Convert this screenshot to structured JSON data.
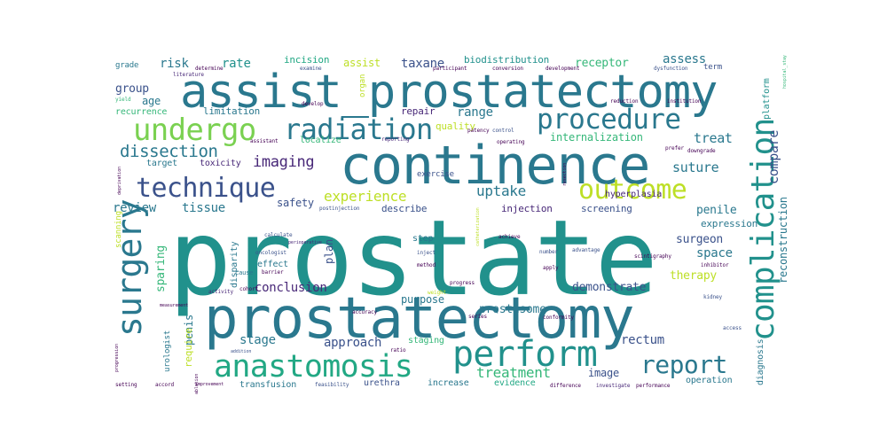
{
  "palette": {
    "teal": "#21918c",
    "teal_dark": "#2a788e",
    "blue": "#3b528b",
    "indigo": "#414487",
    "purple": "#482878",
    "violet": "#440154",
    "green": "#35b779",
    "mint": "#22a884",
    "lime": "#7ad151",
    "yellow": "#bddf26",
    "bright_yellow": "#fde725"
  },
  "words": {
    "prostate": "prostate",
    "prostatectomy": "prostatectomy",
    "continence": "continence",
    "assist_prostatectomy": "assist_prostatectomy",
    "complication": "complication",
    "surgery": "surgery",
    "perform": "perform",
    "anastomosis": "anastomosis",
    "procedure": "procedure",
    "undergo": "undergo",
    "technique": "technique",
    "outcome": "outcome",
    "radiation": "radiation",
    "report": "report",
    "dissection": "dissection",
    "imaging": "imaging",
    "experience": "experience",
    "uptake": "uptake",
    "review": "review",
    "tissue": "tissue",
    "suture": "suture",
    "treat": "treat",
    "range": "range",
    "risk": "risk",
    "rate": "rate",
    "group": "group",
    "age": "age",
    "assist": "assist",
    "taxane": "taxane",
    "incision": "incision",
    "biodistribution": "biodistribution",
    "receptor": "receptor",
    "assess": "assess",
    "term": "term",
    "limitation": "limitation",
    "recurrence": "recurrence",
    "repair": "repair",
    "quality": "quality",
    "internalization": "internalization",
    "localize": "localize",
    "compare": "compare",
    "platform": "platform",
    "target": "target",
    "toxicity": "toxicity",
    "safety": "safety",
    "describe": "describe",
    "injection": "injection",
    "screening": "screening",
    "penile": "penile",
    "expression": "expression",
    "surgeon": "surgeon",
    "space": "space",
    "therapy": "therapy",
    "conclusion": "conclusion",
    "demonstrate": "demonstrate",
    "prostasome": "prostasome",
    "purpose": "purpose",
    "step": "step",
    "plan": "plan",
    "effect": "effect",
    "stage": "stage",
    "approach": "approach",
    "staging": "staging",
    "rectum": "rectum",
    "treatment": "treatment",
    "image": "image",
    "evidence": "evidence",
    "increase": "increase",
    "urethra": "urethra",
    "transfusion": "transfusion",
    "operation": "operation",
    "diagnosis": "diagnosis",
    "reconstruction": "reconstruction",
    "sparing": "sparing",
    "penis": "penis",
    "require": "require",
    "disparity": "disparity",
    "urologist": "urologist",
    "grade": "grade",
    "scanning": "scanning",
    "hyperplasia": "hyperplasia",
    "exercise": "exercise",
    "organ": "organ",
    "dysfunction": "dysfunction",
    "literature": "literature",
    "yield": "yield",
    "develop": "develop",
    "examine": "examine",
    "control": "control",
    "patency": "patency",
    "reporting": "reporting",
    "operating": "operating",
    "scintigraphy": "scintigraphy",
    "calculate": "calculate",
    "oncologist": "oncologist",
    "perioperative": "perioperative",
    "advantage": "advantage",
    "inhibitor": "inhibitor",
    "number": "number",
    "apply": "apply",
    "progression": "progression",
    "setting": "setting",
    "accord": "accord",
    "improvement": "improvement",
    "feasibility": "feasibility",
    "difference": "difference",
    "investigate": "investigate",
    "performance": "performance",
    "series": "series",
    "conformity": "conformity",
    "progress": "progress",
    "addition": "addition",
    "access": "access",
    "kidney": "kidney",
    "measurement": "measurement",
    "assistant": "assistant",
    "cohort": "cohort",
    "method": "method",
    "activity": "activity",
    "institution": "institution",
    "reduction": "reduction",
    "development": "development",
    "participant": "participant",
    "conversion": "conversion",
    "determine": "determine",
    "downgrade": "downgrade",
    "prefer": "prefer",
    "barrier": "barrier",
    "postinjection": "postinjection",
    "hospital_stay": "hospital_stay",
    "accuracy": "accuracy",
    "achieve": "achieve",
    "ratio": "ratio",
    "inject": "inject",
    "catheterization": "catheterization",
    "deprivation": "deprivation",
    "ablation": "ablation",
    "weight": "weight",
    "cause": "cause",
    "resection": "resection"
  }
}
